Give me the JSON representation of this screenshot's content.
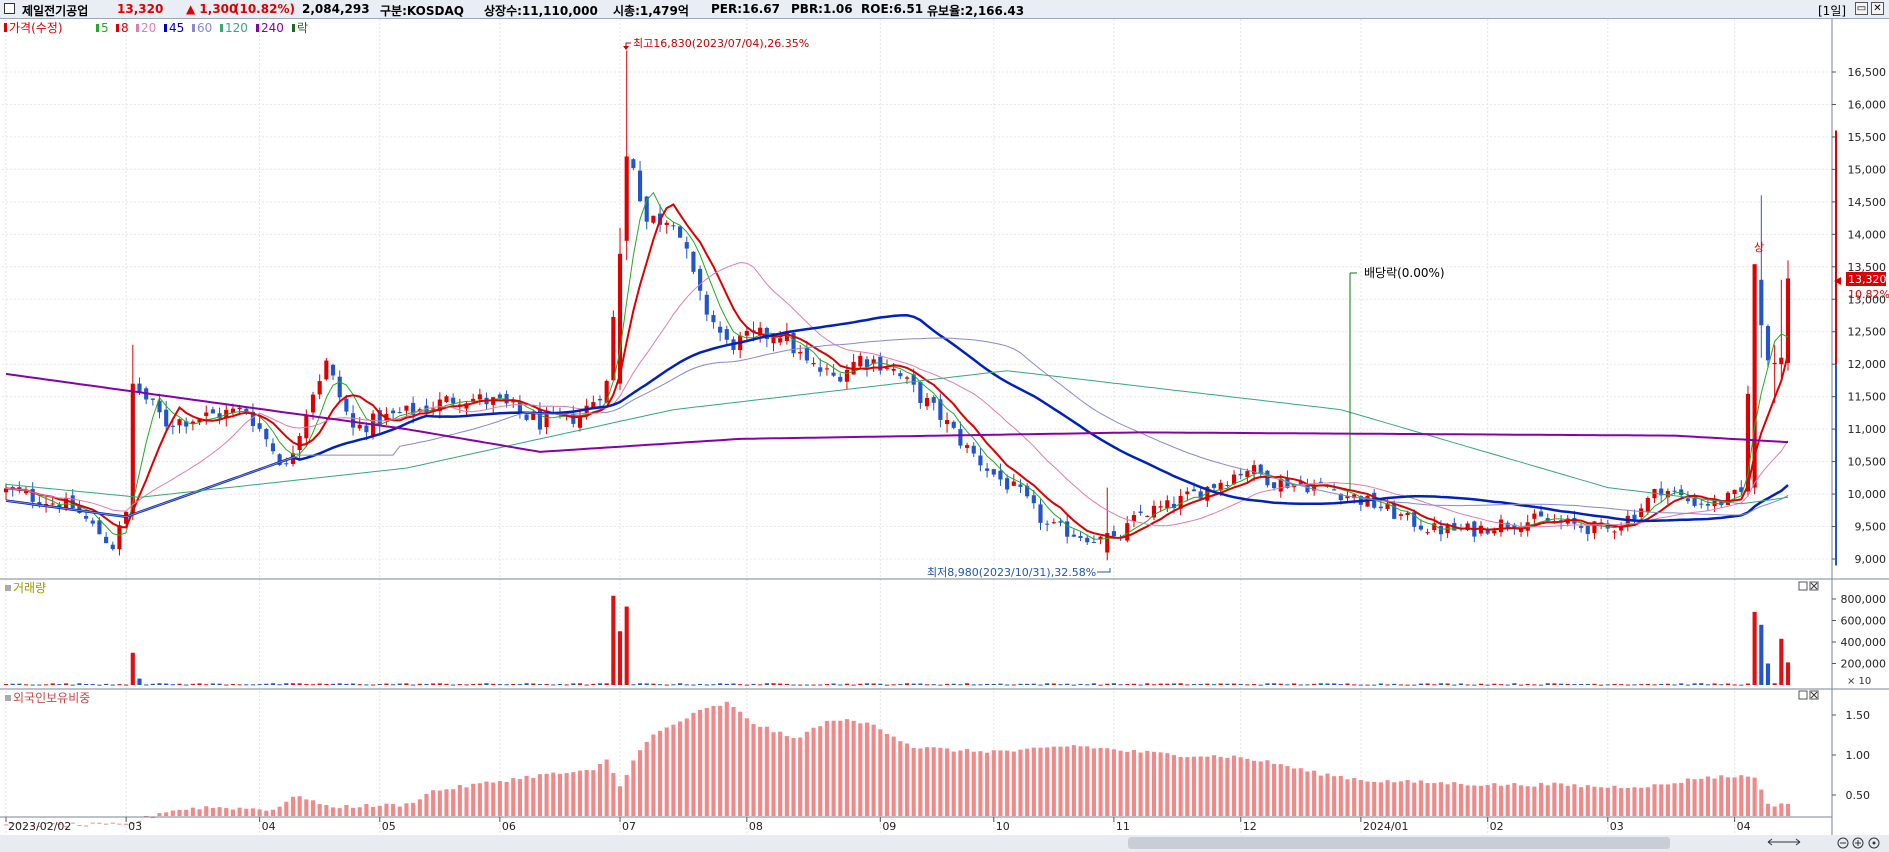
{
  "header": {
    "stock_name": "제일전기공업",
    "price": "13,320",
    "change": "▲ 1,300",
    "change_pct": "(10.82%)",
    "volume": "2,084,293",
    "market": "구분:KOSDAQ",
    "shares": "상장수:11,110,000",
    "market_cap": "시총:1,479억",
    "per": "PER:16.67",
    "pbr": "PBR:1.06",
    "roe": "ROE:6.51",
    "float_ratio": "유보율:2,166.43",
    "period": "[1일]"
  },
  "legend": {
    "price_label": "가격(수정)",
    "items": [
      {
        "label": "5",
        "color": "#22aa22"
      },
      {
        "label": "8",
        "color": "#dd0000"
      },
      {
        "label": "20",
        "color": "#e27ab0"
      },
      {
        "label": "45",
        "color": "#0000cc"
      },
      {
        "label": "60",
        "color": "#8888cc"
      },
      {
        "label": "120",
        "color": "#33aa77"
      },
      {
        "label": "240",
        "color": "#8800aa"
      },
      {
        "label": "락",
        "color": "#226622"
      }
    ]
  },
  "annotations": {
    "high": "최고16,830(2023/07/04),26.35%",
    "low": "최저8,980(2023/10/31),32.58%",
    "dividend": "배당락(0.00%)",
    "upper_limit": "상",
    "last_price": "13,320",
    "last_pct": "10.82%"
  },
  "panels": {
    "volume_title": "거래량",
    "volume_unit": "× 10",
    "foreign_title": "외국인보유비중"
  },
  "colors": {
    "up": "#dd0000",
    "down": "#2255cc",
    "volume_bar": "#dd1111",
    "foreign_bar": "#f08a8a"
  },
  "chart_data": {
    "type": "candlestick",
    "price_axis": {
      "ylim": [
        8850,
        16850
      ],
      "ticks": [
        9000,
        9500,
        10000,
        10500,
        11000,
        11500,
        12000,
        12500,
        13000,
        13500,
        14000,
        14500,
        15000,
        15500,
        16000,
        16500
      ],
      "tick_labels": [
        "9,000",
        "9,500",
        "10,000",
        "10,500",
        "11,000",
        "11,500",
        "12,000",
        "12,500",
        "13,000",
        "13,500",
        "14,000",
        "14,500",
        "15,000",
        "15,500",
        "16,000",
        "16,500"
      ]
    },
    "volume_axis": {
      "ylim": [
        0,
        880000
      ],
      "ticks": [
        200000,
        400000,
        600000,
        800000
      ],
      "tick_labels": [
        "200,000",
        "400,000",
        "600,000",
        "800,000"
      ]
    },
    "foreign_axis": {
      "ylim": [
        0,
        1.95
      ],
      "ticks": [
        0.5,
        1.0,
        1.5
      ],
      "tick_labels": [
        "0.50",
        "1.00",
        "1.50"
      ]
    },
    "x_axis_labels": [
      "2023/02/02",
      "03",
      "04",
      "05",
      "06",
      "07",
      "08",
      "09",
      "10",
      "11",
      "12",
      "2024/01",
      "02",
      "03",
      "04"
    ],
    "x_label_index": [
      0,
      18,
      38,
      56,
      74,
      92,
      111,
      131,
      148,
      166,
      185,
      203,
      222,
      240,
      259
    ],
    "ohlc_key_points": [
      [
        0,
        10050
      ],
      [
        10,
        9800
      ],
      [
        16,
        9200
      ],
      [
        18,
        9700
      ],
      [
        19,
        11700
      ],
      [
        24,
        11100
      ],
      [
        30,
        11200
      ],
      [
        36,
        11300
      ],
      [
        42,
        10400
      ],
      [
        46,
        11600
      ],
      [
        48,
        12000
      ],
      [
        52,
        11000
      ],
      [
        56,
        11150
      ],
      [
        62,
        11300
      ],
      [
        68,
        11500
      ],
      [
        74,
        11400
      ],
      [
        80,
        11100
      ],
      [
        86,
        11200
      ],
      [
        90,
        11700
      ],
      [
        92,
        13700
      ],
      [
        94,
        15100
      ],
      [
        96,
        14200
      ],
      [
        100,
        14300
      ],
      [
        104,
        13000
      ],
      [
        108,
        12300
      ],
      [
        112,
        12400
      ],
      [
        116,
        12500
      ],
      [
        120,
        12000
      ],
      [
        124,
        11800
      ],
      [
        128,
        12100
      ],
      [
        132,
        12000
      ],
      [
        136,
        11600
      ],
      [
        140,
        11200
      ],
      [
        144,
        10700
      ],
      [
        148,
        10300
      ],
      [
        152,
        10000
      ],
      [
        156,
        9500
      ],
      [
        160,
        9400
      ],
      [
        164,
        9300
      ],
      [
        166,
        9250
      ],
      [
        170,
        9700
      ],
      [
        174,
        9800
      ],
      [
        178,
        10000
      ],
      [
        182,
        10200
      ],
      [
        186,
        10400
      ],
      [
        190,
        10200
      ],
      [
        194,
        10150
      ],
      [
        198,
        10100
      ],
      [
        202,
        9950
      ],
      [
        206,
        9800
      ],
      [
        210,
        9600
      ],
      [
        214,
        9450
      ],
      [
        220,
        9450
      ],
      [
        224,
        9550
      ],
      [
        230,
        9600
      ],
      [
        236,
        9500
      ],
      [
        240,
        9450
      ],
      [
        244,
        9700
      ],
      [
        248,
        10100
      ],
      [
        252,
        9900
      ],
      [
        256,
        9850
      ],
      [
        260,
        10000
      ],
      [
        262,
        13300
      ],
      [
        264,
        12000
      ],
      [
        265,
        11900
      ],
      [
        267,
        13320
      ]
    ],
    "spike_days": [
      {
        "i": 19,
        "open": 9700,
        "close": 11700,
        "high": 12300,
        "low": 9600
      },
      {
        "i": 92,
        "open": 11700,
        "close": 13700,
        "high": 14100,
        "low": 11600
      },
      {
        "i": 93,
        "open": 13900,
        "close": 15200,
        "high": 16830,
        "low": 13600
      },
      {
        "i": 165,
        "open": 9100,
        "close": 9400,
        "high": 10100,
        "low": 8980
      },
      {
        "i": 262,
        "open": 10100,
        "close": 13540,
        "high": 13540,
        "low": 10000
      },
      {
        "i": 263,
        "open": 13300,
        "close": 12600,
        "high": 14600,
        "low": 12100
      },
      {
        "i": 265,
        "open": 12000,
        "close": 12020,
        "high": 12300,
        "low": 11400
      },
      {
        "i": 266,
        "open": 12000,
        "close": 12100,
        "high": 13300,
        "low": 11800
      },
      {
        "i": 267,
        "open": 12020,
        "close": 13320,
        "high": 13600,
        "low": 11900
      }
    ],
    "volume_spikes": [
      {
        "i": 19,
        "v": 300000
      },
      {
        "i": 20,
        "v": 60000
      },
      {
        "i": 91,
        "v": 830000
      },
      {
        "i": 92,
        "v": 500000
      },
      {
        "i": 93,
        "v": 730000
      },
      {
        "i": 262,
        "v": 680000
      },
      {
        "i": 263,
        "v": 560000
      },
      {
        "i": 264,
        "v": 200000
      },
      {
        "i": 266,
        "v": 430000
      },
      {
        "i": 267,
        "v": 210000
      }
    ],
    "foreign_key_points": [
      [
        0,
        0.13
      ],
      [
        18,
        0.13
      ],
      [
        24,
        0.3
      ],
      [
        30,
        0.35
      ],
      [
        40,
        0.32
      ],
      [
        44,
        0.5
      ],
      [
        48,
        0.35
      ],
      [
        60,
        0.38
      ],
      [
        64,
        0.55
      ],
      [
        72,
        0.65
      ],
      [
        80,
        0.75
      ],
      [
        88,
        0.8
      ],
      [
        90,
        0.95
      ],
      [
        92,
        0.6
      ],
      [
        94,
        0.95
      ],
      [
        97,
        1.25
      ],
      [
        104,
        1.55
      ],
      [
        108,
        1.65
      ],
      [
        112,
        1.4
      ],
      [
        118,
        1.2
      ],
      [
        124,
        1.45
      ],
      [
        130,
        1.38
      ],
      [
        136,
        1.1
      ],
      [
        144,
        1.05
      ],
      [
        152,
        1.05
      ],
      [
        160,
        1.12
      ],
      [
        168,
        1.05
      ],
      [
        176,
        1.0
      ],
      [
        184,
        0.98
      ],
      [
        190,
        0.9
      ],
      [
        196,
        0.78
      ],
      [
        204,
        0.68
      ],
      [
        212,
        0.66
      ],
      [
        222,
        0.63
      ],
      [
        232,
        0.63
      ],
      [
        240,
        0.6
      ],
      [
        248,
        0.62
      ],
      [
        254,
        0.72
      ],
      [
        262,
        0.74
      ],
      [
        264,
        0.37
      ],
      [
        267,
        0.4
      ]
    ],
    "n_days": 268
  }
}
